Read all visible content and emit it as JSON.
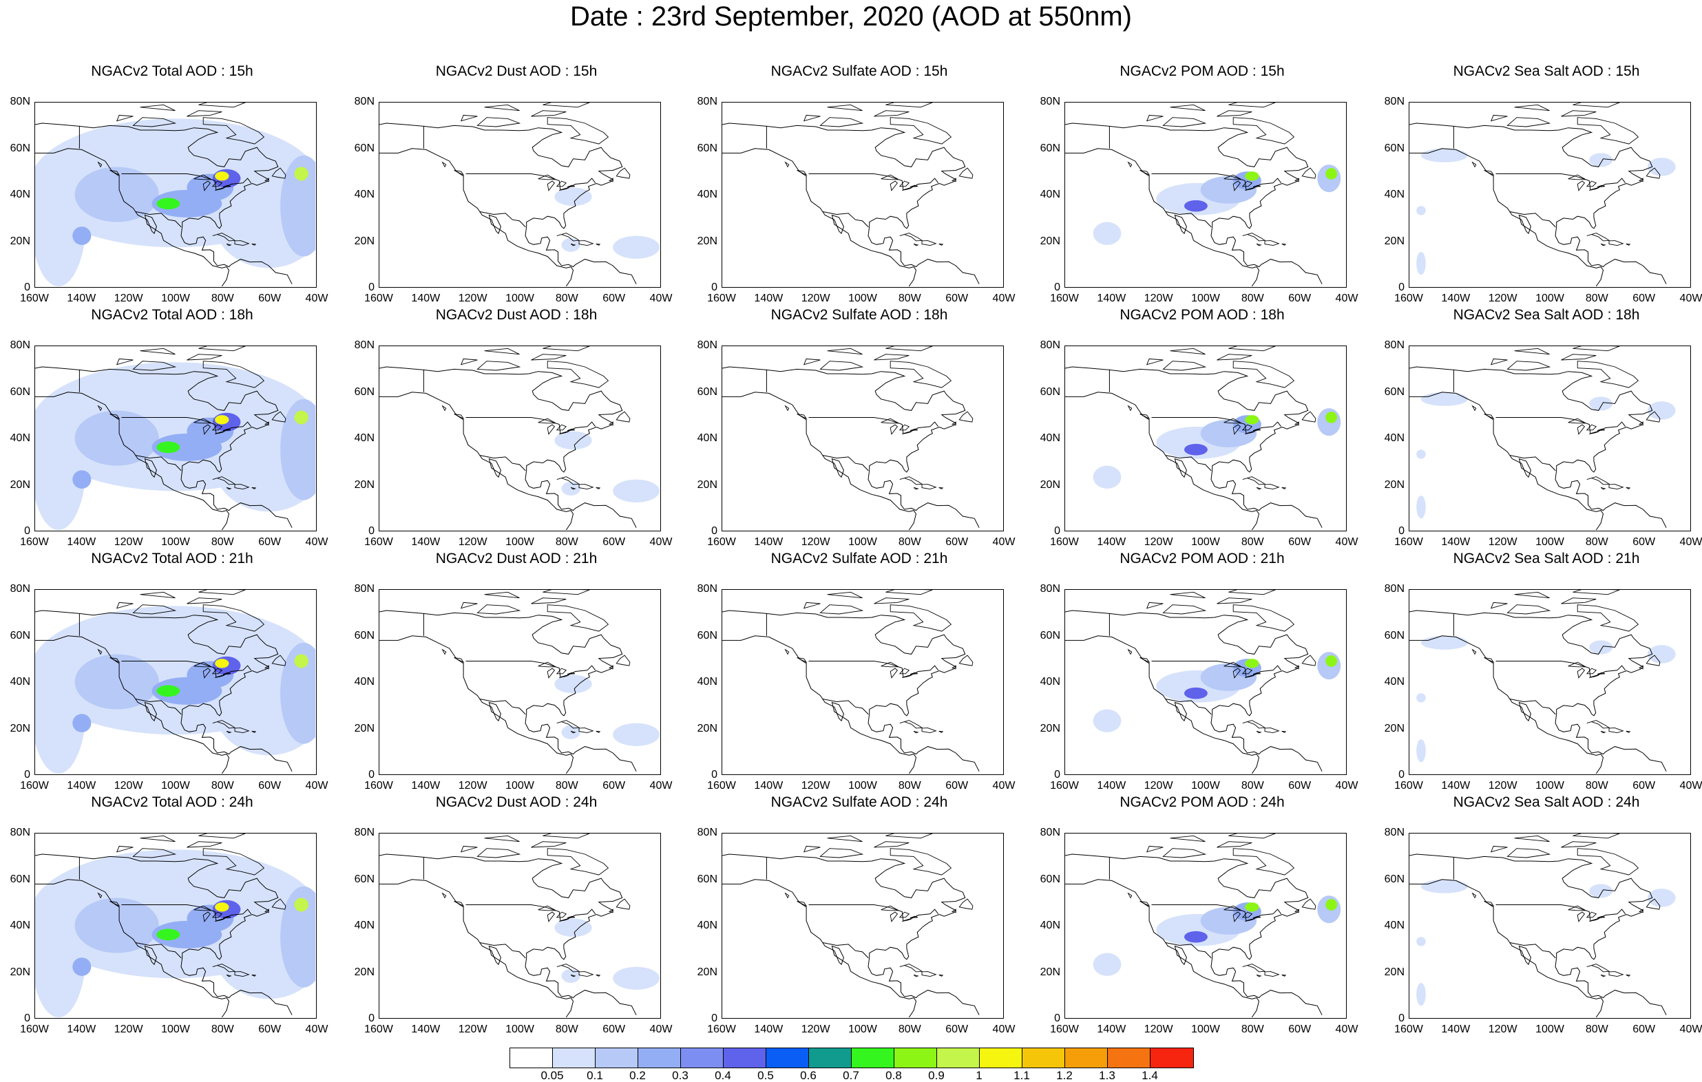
{
  "title": "Date : 23rd  September, 2020 (AOD at 550nm)",
  "panel_titles": [
    [
      "NGACv2 Total AOD : 15h",
      "NGACv2 Dust AOD : 15h",
      "NGACv2 Sulfate AOD : 15h",
      "NGACv2 POM AOD : 15h",
      "NGACv2 Sea Salt AOD : 15h"
    ],
    [
      "NGACv2 Total AOD : 18h",
      "NGACv2 Dust AOD : 18h",
      "NGACv2 Sulfate AOD : 18h",
      "NGACv2 POM AOD : 18h",
      "NGACv2 Sea Salt AOD : 18h"
    ],
    [
      "NGACv2 Total AOD : 21h",
      "NGACv2 Dust AOD : 21h",
      "NGACv2 Sulfate AOD : 21h",
      "NGACv2 POM AOD : 21h",
      "NGACv2 Sea Salt AOD : 21h"
    ],
    [
      "NGACv2 Total AOD : 24h",
      "NGACv2 Dust AOD : 24h",
      "NGACv2 Sulfate AOD : 24h",
      "NGACv2 POM AOD : 24h",
      "NGACv2 Sea Salt  AOD : 24h"
    ]
  ],
  "axes": {
    "lon_ticks": [
      "160W",
      "140W",
      "120W",
      "100W",
      "80W",
      "60W",
      "40W"
    ],
    "lat_ticks": [
      "80N",
      "60N",
      "40N",
      "20N",
      "0"
    ],
    "lon_range": [
      -160,
      -40
    ],
    "lat_range": [
      0,
      80
    ]
  },
  "colorbar": {
    "colors": [
      "#ffffff",
      "#d6e2fb",
      "#b6c9f7",
      "#94aef5",
      "#7d8ef2",
      "#5f62ea",
      "#0a5ef5",
      "#119b8e",
      "#35f51e",
      "#8cf515",
      "#c3f54a",
      "#f6f510",
      "#f5c50a",
      "#f59e0a",
      "#f57310",
      "#f52510"
    ],
    "labels": [
      "0.05",
      "0.1",
      "0.2",
      "0.3",
      "0.4",
      "0.5",
      "0.6",
      "0.7",
      "0.8",
      "0.9",
      "1",
      "1.1",
      "1.2",
      "1.3",
      "1.4"
    ]
  }
}
